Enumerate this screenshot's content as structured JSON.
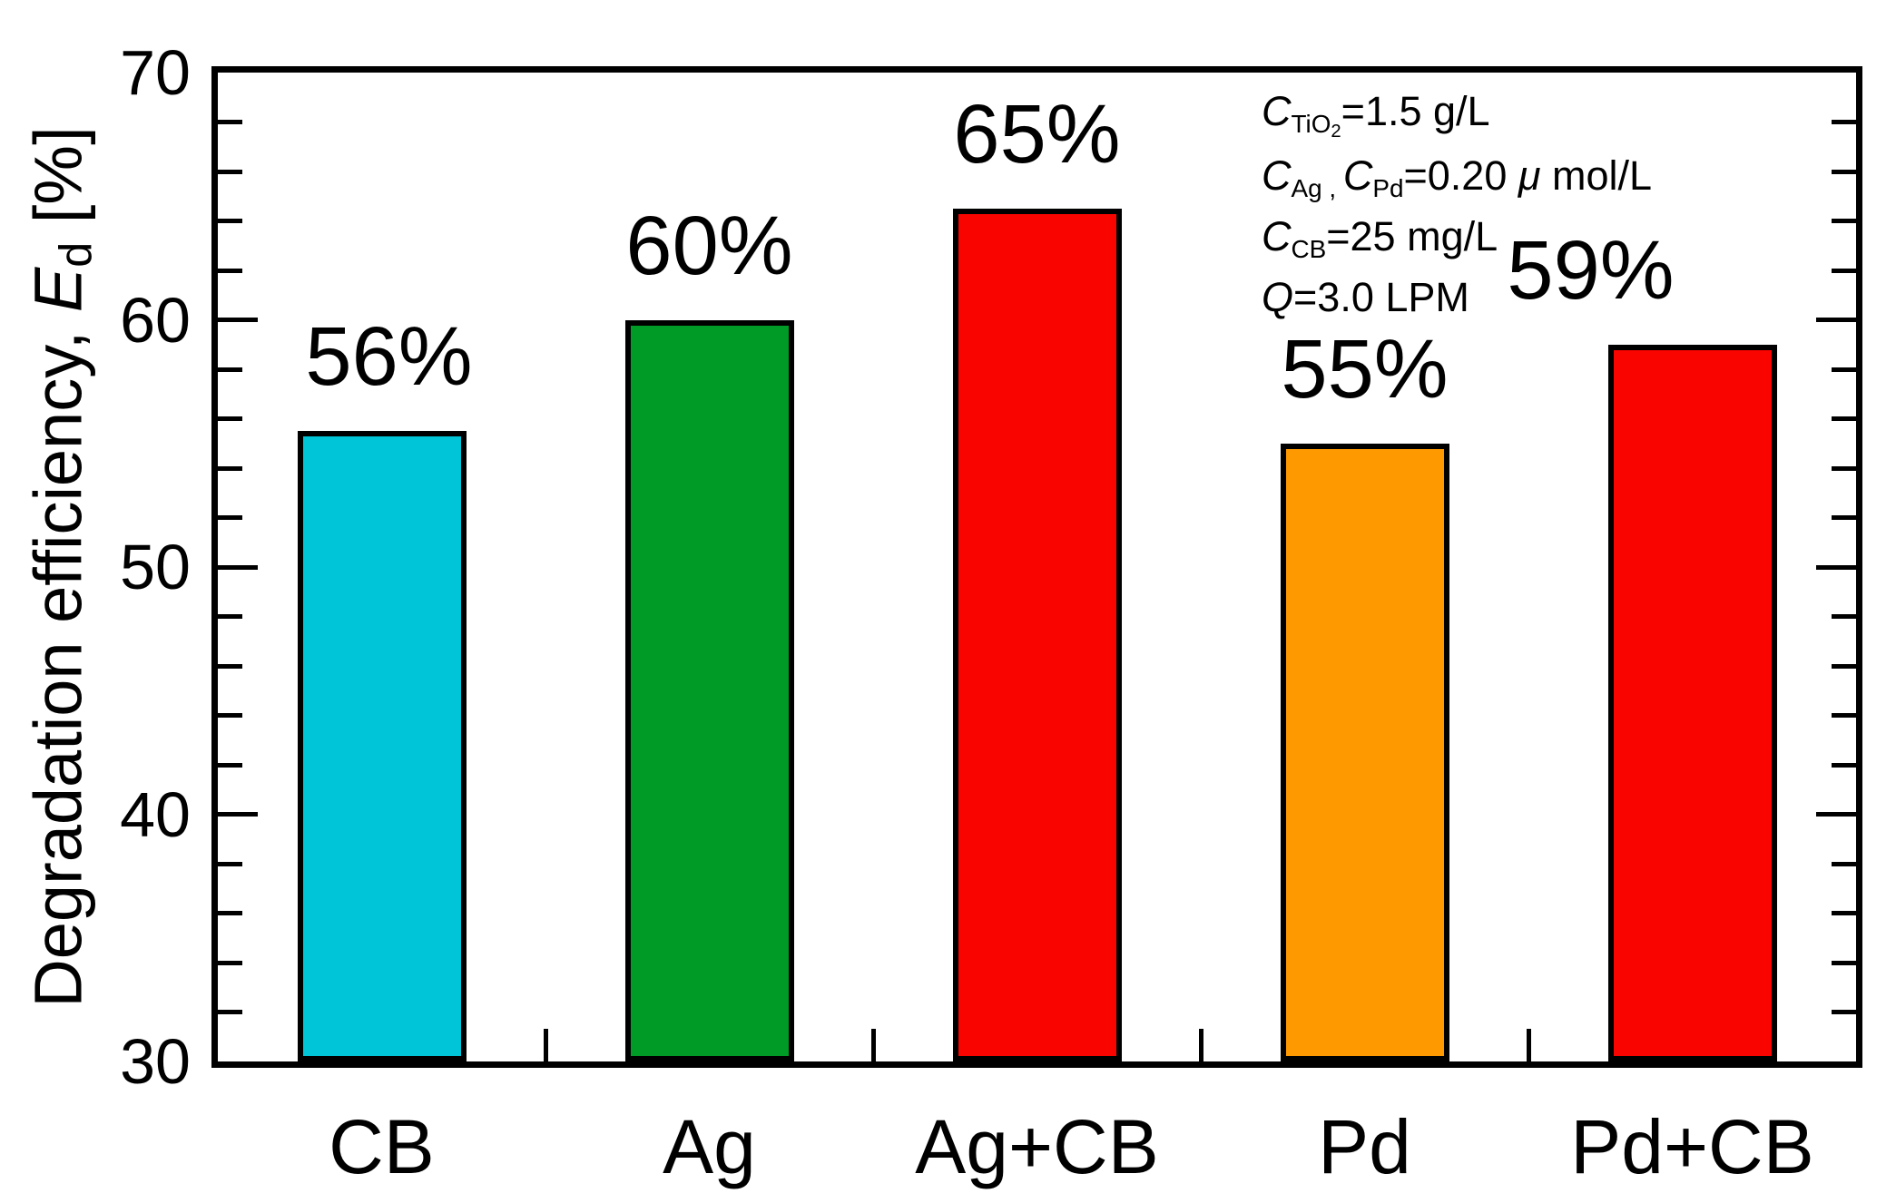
{
  "chart_data": {
    "type": "bar",
    "title": "",
    "categories": [
      "CB",
      "Ag",
      "Ag+CB",
      "Pd",
      "Pd+CB"
    ],
    "values": [
      55.5,
      60,
      64.5,
      55,
      59
    ],
    "bar_labels": [
      "56%",
      "60%",
      "65%",
      "55%",
      "59%"
    ],
    "bar_label_dx": [
      8,
      0,
      0,
      0,
      -112
    ],
    "bar_colors": [
      "#00C4D8",
      "#009B26",
      "#FA0400",
      "#FF9900",
      "#FA0400"
    ],
    "xlabel": "",
    "ylabel": "Degradation efficiency, Ed [%]",
    "ylabel_parts": {
      "prefix": "Degradation efficiency, ",
      "symbol": "E",
      "subscript": "d",
      "suffix": " [%]"
    },
    "ylim": [
      30,
      70
    ],
    "y_major_ticks": [
      30,
      40,
      50,
      60,
      70
    ],
    "y_tick_labels": [
      "30",
      "40",
      "50",
      "60",
      "70"
    ],
    "y_minor_step": 2,
    "grid": false,
    "legend": "none",
    "frame": true,
    "axis_color": "#000000",
    "annotation_lines": [
      {
        "segments": [
          {
            "text": "C",
            "style": "italic"
          },
          {
            "text": "TiO",
            "style": "sub"
          },
          {
            "text": "2",
            "style": "subsub"
          },
          {
            "text": "=1.5 g/L",
            "style": "normal"
          }
        ]
      },
      {
        "segments": [
          {
            "text": "C",
            "style": "italic"
          },
          {
            "text": "Ag",
            "style": "sub"
          },
          {
            "text": " , ",
            "style": "sub"
          },
          {
            "text": "C",
            "style": "italic"
          },
          {
            "text": "Pd",
            "style": "sub"
          },
          {
            "text": "=0.20 ",
            "style": "normal"
          },
          {
            "text": "μ",
            "style": "italic"
          },
          {
            "text": " mol/L",
            "style": "normal"
          }
        ]
      },
      {
        "segments": [
          {
            "text": "C",
            "style": "italic"
          },
          {
            "text": "CB",
            "style": "sub"
          },
          {
            "text": "=25 mg/L",
            "style": "normal"
          }
        ]
      },
      {
        "segments": [
          {
            "text": "Q",
            "style": "italic"
          },
          {
            "text": "=3.0 LPM",
            "style": "normal"
          }
        ]
      }
    ]
  }
}
